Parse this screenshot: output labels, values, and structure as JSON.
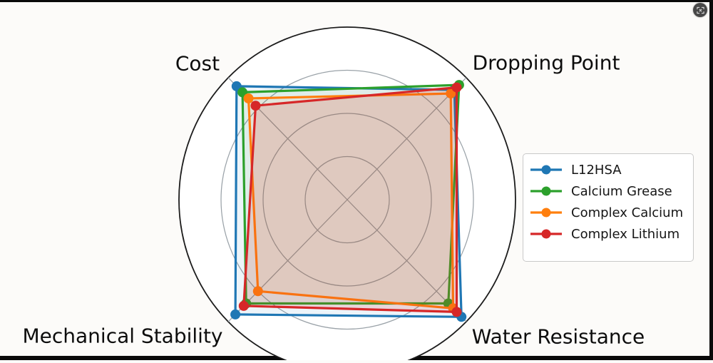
{
  "window": {
    "capture_button_icon": "screenshot-focus-icon"
  },
  "chart_data": {
    "type": "radar",
    "title": "",
    "axes": [
      "Cost",
      "Dropping Point",
      "Mechanical Stability",
      "Water Resistance"
    ],
    "scale": {
      "min": 0,
      "max": 10,
      "grid_values": [
        2.5,
        5,
        7.5
      ],
      "outer_value": 10
    },
    "grid": true,
    "grid_color": "#9aa2a8",
    "outline_color": "#1c1c1c",
    "series": [
      {
        "name": "L12HSA",
        "color": "#1f77b4",
        "values": [
          9.3,
          9.0,
          9.4,
          9.6
        ]
      },
      {
        "name": "Calcium Grease",
        "color": "#2ca02c",
        "values": [
          8.8,
          9.4,
          8.5,
          8.5
        ]
      },
      {
        "name": "Complex Calcium",
        "color": "#ff7f0e",
        "values": [
          8.3,
          8.7,
          7.5,
          8.9
        ]
      },
      {
        "name": "Complex Lithium",
        "color": "#d62728",
        "values": [
          7.7,
          9.2,
          8.7,
          9.2
        ]
      }
    ],
    "legend": {
      "position": "right",
      "items": [
        "L12HSA",
        "Calcium Grease",
        "Complex Calcium",
        "Complex Lithium"
      ]
    }
  }
}
